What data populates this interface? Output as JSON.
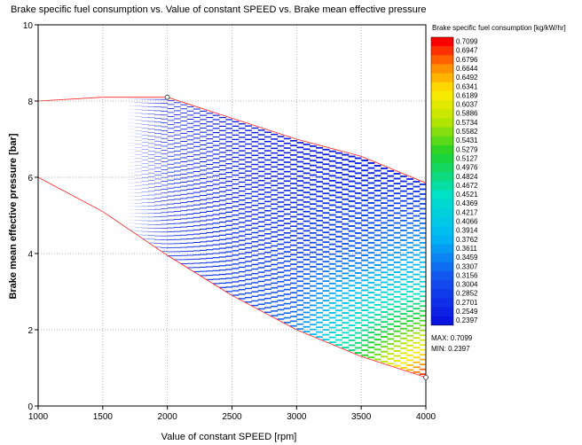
{
  "chart_data": {
    "type": "heatmap",
    "title": "Brake specific fuel consumption vs. Value of constant SPEED vs. Brake mean effective pressure",
    "xlabel": "Value of constant SPEED  [rpm]",
    "ylabel": "Brake mean effective pressure  [bar]",
    "xlim": [
      1000,
      4000
    ],
    "ylim": [
      0,
      10
    ],
    "x_ticks": [
      "1000",
      "1500",
      "2000",
      "2500",
      "3000",
      "3500",
      "4000"
    ],
    "y_ticks": [
      "0",
      "2",
      "4",
      "6",
      "8",
      "10"
    ],
    "grid": true,
    "colorbar": {
      "title": "Brake specific fuel consumption  [kg/kW/hr]",
      "levels": [
        "0.7099",
        "0.6947",
        "0.6796",
        "0.6644",
        "0.6492",
        "0.6341",
        "0.6189",
        "0.6037",
        "0.5886",
        "0.5734",
        "0.5582",
        "0.5431",
        "0.5279",
        "0.5127",
        "0.4976",
        "0.4824",
        "0.4672",
        "0.4521",
        "0.4369",
        "0.4217",
        "0.4066",
        "0.3914",
        "0.3762",
        "0.3611",
        "0.3459",
        "0.3307",
        "0.3156",
        "0.3004",
        "0.2852",
        "0.2701",
        "0.2549",
        "0.2397"
      ],
      "max_label": "MAX: 0.7099",
      "min_label": "MIN: 0.2397"
    },
    "region_upper_boundary": {
      "x": [
        1000,
        1500,
        2000,
        2500,
        3000,
        3500,
        4000
      ],
      "y": [
        8.0,
        8.1,
        8.1,
        7.55,
        7.0,
        6.55,
        5.85
      ]
    },
    "region_lower_boundary": {
      "x": [
        1000,
        1500,
        2000,
        2500,
        3000,
        3500,
        4000
      ],
      "y": [
        6.0,
        5.1,
        3.95,
        2.9,
        2.0,
        1.3,
        0.75
      ]
    },
    "bsfc_grid": {
      "speeds": [
        1000,
        1500,
        2000,
        2500,
        3000,
        3500,
        4000
      ],
      "rows_top_to_bottom": [
        [
          0.252,
          0.25,
          0.245,
          0.244,
          0.245,
          0.248,
          0.262
        ],
        [
          0.27,
          0.262,
          0.255,
          0.262,
          0.28,
          0.33,
          0.42
        ],
        [
          0.285,
          0.275,
          0.27,
          0.29,
          0.34,
          0.52,
          0.71
        ]
      ]
    },
    "markers": [
      {
        "x": 2000,
        "y": 8.1
      },
      {
        "x": 4000,
        "y": 0.75
      }
    ]
  },
  "colors": {
    "scale_low": "#0a14e0",
    "scale_high": "#ff0000",
    "grid": "#9a9a9a",
    "boundary": "#ff2020"
  }
}
